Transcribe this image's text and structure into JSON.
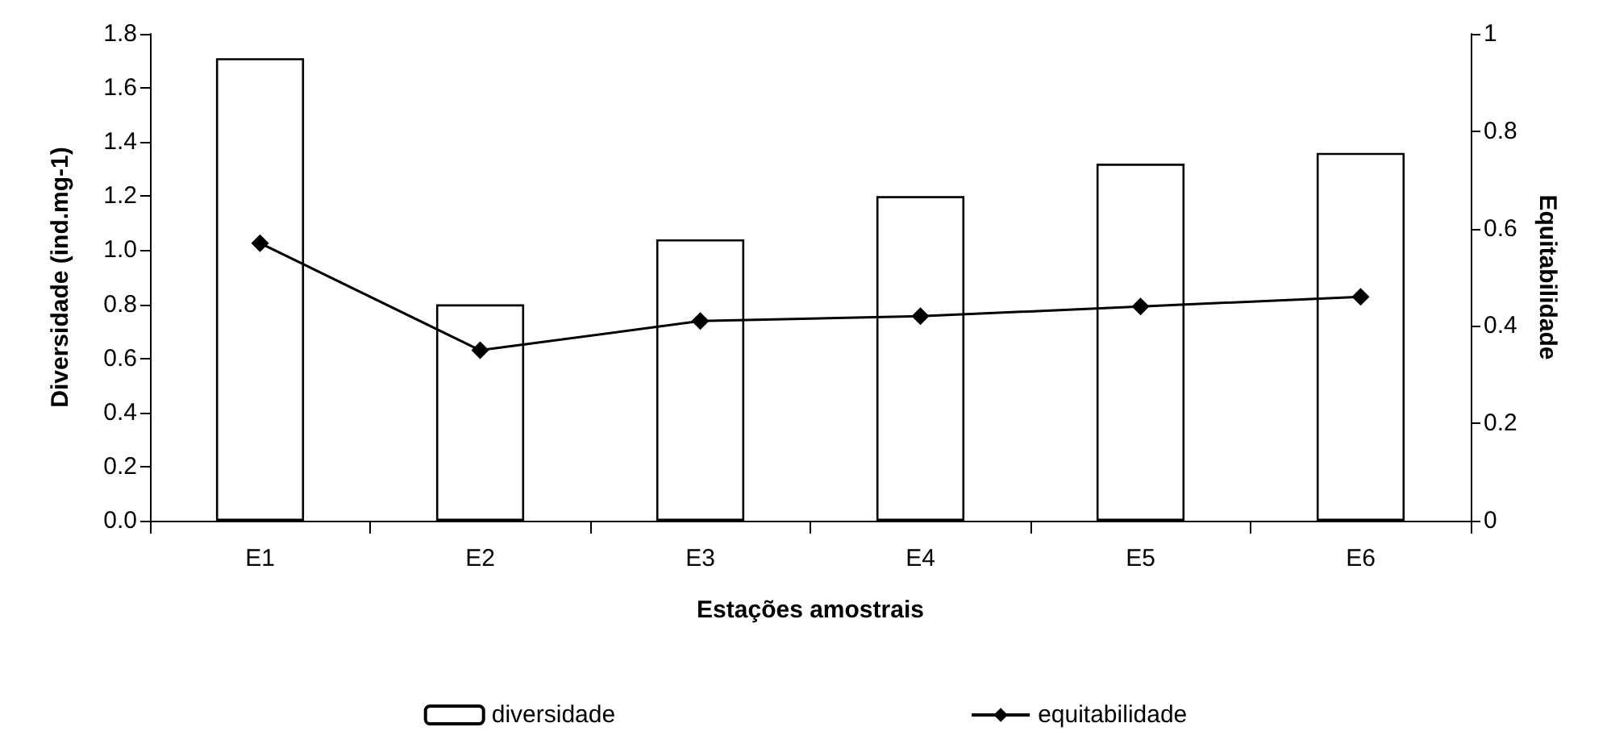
{
  "chart_data": {
    "type": "bar",
    "xlabel": "Estações amostrais",
    "ylabel": "Diversidade (ind.mg-1)",
    "y2label": "Equitabilidade",
    "categories": [
      "E1",
      "E2",
      "E3",
      "E4",
      "E5",
      "E6"
    ],
    "series": [
      {
        "name": "diversidade",
        "color": "#ffffff",
        "values": [
          1.71,
          0.8,
          1.04,
          1.2,
          1.32,
          1.36
        ]
      },
      {
        "name": "equitabilidade",
        "type": "line",
        "axis": "y2",
        "color": "#000000",
        "values": [
          0.57,
          0.35,
          0.41,
          0.42,
          0.44,
          0.46
        ]
      }
    ],
    "ylim": [
      0,
      1.8
    ],
    "yticks": [
      {
        "value": 0,
        "label": "0.0"
      },
      {
        "value": 0.2,
        "label": "0.2"
      },
      {
        "value": 0.4,
        "label": "0.4"
      },
      {
        "value": 0.6,
        "label": "0.6"
      },
      {
        "value": 0.8,
        "label": "0.8"
      },
      {
        "value": 1,
        "label": "1.0"
      },
      {
        "value": 1.2,
        "label": "1.2"
      },
      {
        "value": 1.4,
        "label": "1.4"
      },
      {
        "value": 1.6,
        "label": "1.6"
      },
      {
        "value": 1.8,
        "label": "1.8"
      }
    ],
    "y2lim": [
      0,
      1
    ],
    "y2ticks": [
      0,
      0.2,
      0.4,
      0.6,
      0.8,
      1
    ],
    "grid": false,
    "legend": "bottom",
    "marker": "diamond",
    "line_style": "solid"
  }
}
